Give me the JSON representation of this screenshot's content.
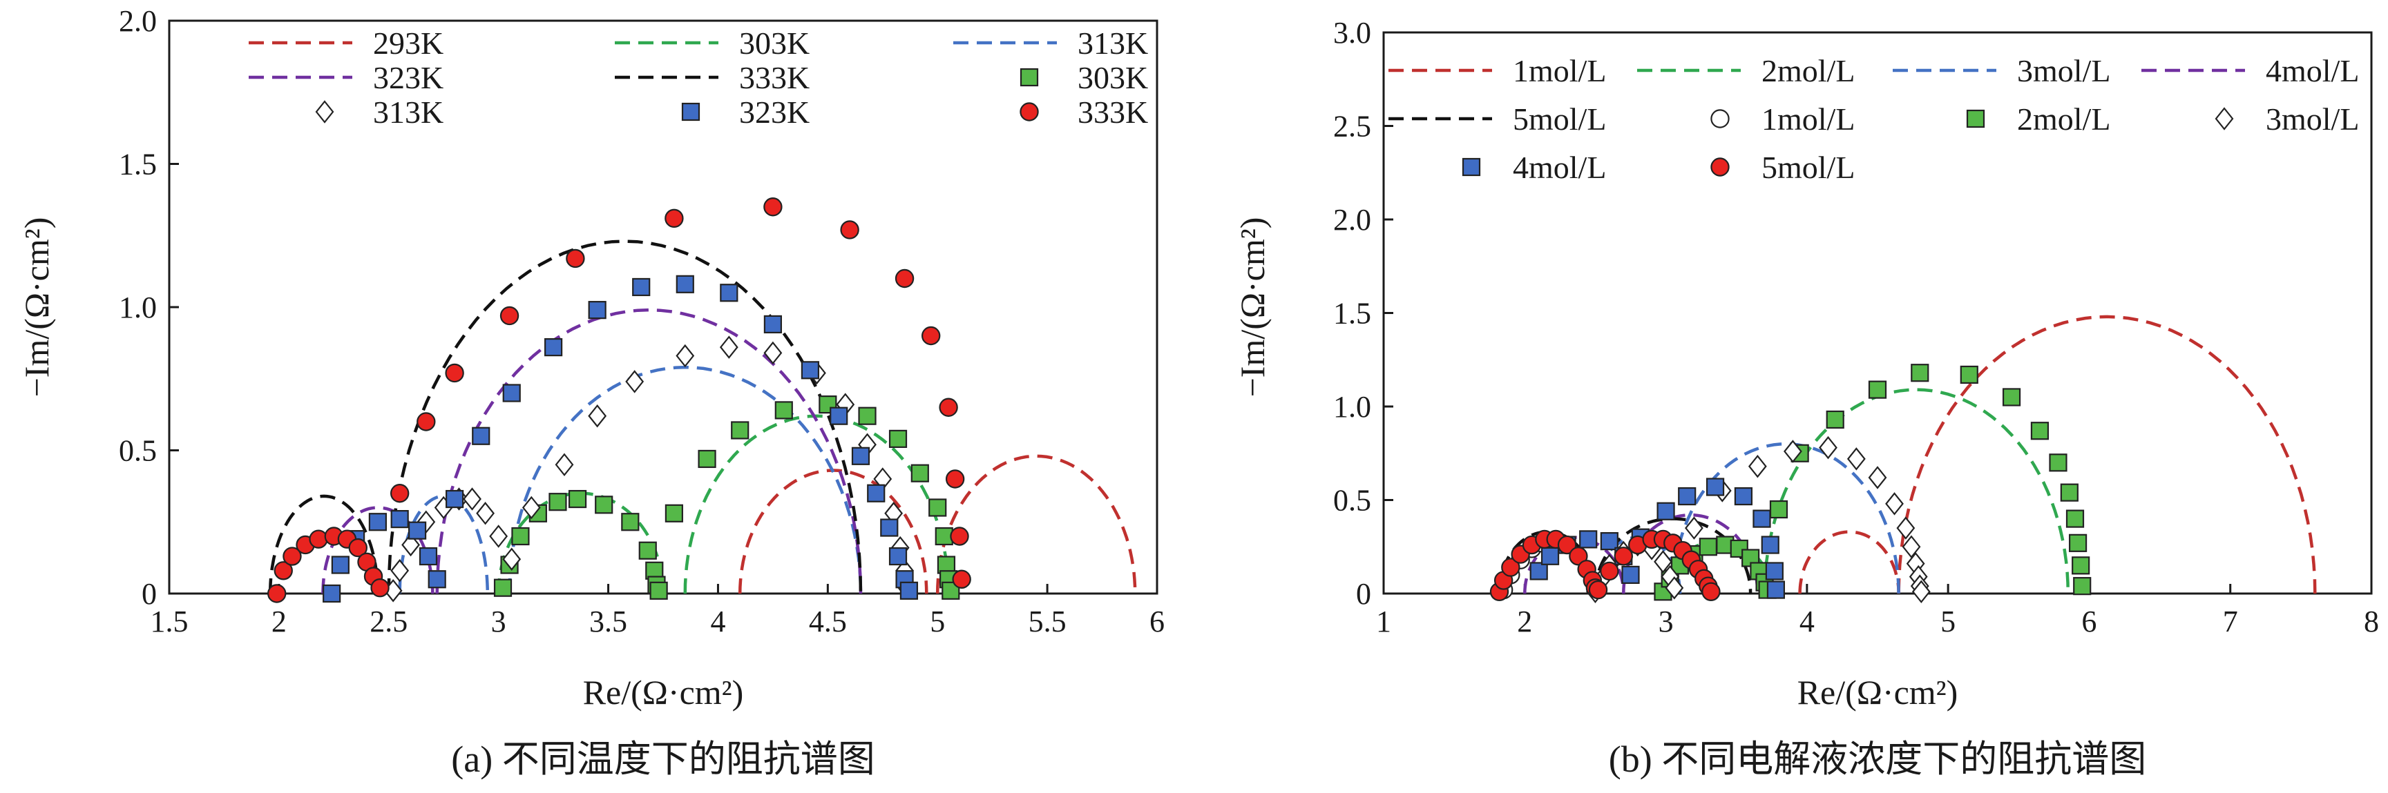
{
  "colors": {
    "red": "#C0302E",
    "green": "#2FA84F",
    "blue": "#4472C4",
    "purple": "#7030A0",
    "black": "#111111",
    "marker_red": "#E8231F",
    "marker_green": "#55B848",
    "marker_blue": "#3F6CC4"
  },
  "chart_data": [
    {
      "type": "scatter",
      "caption": "(a) 不同温度下的阻抗谱图",
      "xlabel": "Re/(Ω·cm²)",
      "ylabel": "−Im/(Ω·cm²)",
      "xlim": [
        1.5,
        6
      ],
      "ylim": [
        0,
        2.0
      ],
      "xticks": [
        1.5,
        2,
        2.5,
        3,
        3.5,
        4,
        4.5,
        5,
        5.5,
        6
      ],
      "xtick_labels": [
        "1.5",
        "2",
        "2.5",
        "3",
        "3.5",
        "4",
        "4.5",
        "5",
        "5.5",
        "6"
      ],
      "yticks": [
        0,
        0.5,
        1.0,
        1.5,
        2.0
      ],
      "ytick_labels": [
        "0",
        "0.5",
        "1.0",
        "1.5",
        "2.0"
      ],
      "grid": false,
      "legend_position": "top",
      "legend": [
        {
          "label": "293K",
          "kind": "line",
          "color": "#C0302E"
        },
        {
          "label": "303K",
          "kind": "line",
          "color": "#2FA84F"
        },
        {
          "label": "313K",
          "kind": "line",
          "color": "#4472C4"
        },
        {
          "label": "323K",
          "kind": "line",
          "color": "#7030A0"
        },
        {
          "label": "333K",
          "kind": "line",
          "color": "#111111"
        },
        {
          "label": "303K",
          "kind": "marker",
          "marker": "square",
          "color": "#55B848"
        },
        {
          "label": "313K",
          "kind": "marker",
          "marker": "diamond",
          "color": "#ffffff"
        },
        {
          "label": "323K",
          "kind": "marker",
          "marker": "square",
          "color": "#3F6CC4"
        },
        {
          "label": "333K",
          "kind": "marker",
          "marker": "circle",
          "color": "#E8231F"
        }
      ],
      "fit_series": [
        {
          "name": "293K",
          "color": "#C0302E",
          "arcs": [
            [
              4.1,
              4.95,
              0.43
            ],
            [
              5.0,
              5.9,
              0.48
            ]
          ]
        },
        {
          "name": "303K",
          "color": "#2FA84F",
          "arcs": [
            [
              3.0,
              3.75,
              0.35
            ],
            [
              3.85,
              5.05,
              0.62
            ]
          ]
        },
        {
          "name": "313K",
          "color": "#4472C4",
          "arcs": [
            [
              2.55,
              2.95,
              0.34
            ],
            [
              3.05,
              4.65,
              0.79
            ]
          ]
        },
        {
          "name": "323K",
          "color": "#7030A0",
          "arcs": [
            [
              2.2,
              2.7,
              0.3
            ],
            [
              2.72,
              4.65,
              0.99
            ]
          ]
        },
        {
          "name": "333K",
          "color": "#111111",
          "arcs": [
            [
              1.96,
              2.45,
              0.34
            ],
            [
              2.5,
              4.65,
              1.23
            ]
          ]
        }
      ],
      "marker_series": [
        {
          "name": "303K",
          "marker": "square",
          "color": "#55B848",
          "x": [
            3.02,
            3.05,
            3.1,
            3.18,
            3.27,
            3.36,
            3.48,
            3.6,
            3.68,
            3.71,
            3.72,
            3.73,
            3.8,
            3.95,
            4.1,
            4.3,
            4.5,
            4.68,
            4.82,
            4.92,
            5.0,
            5.03,
            5.04,
            5.05,
            5.06
          ],
          "y": [
            0.02,
            0.1,
            0.2,
            0.28,
            0.32,
            0.33,
            0.31,
            0.25,
            0.15,
            0.08,
            0.03,
            0.01,
            0.28,
            0.47,
            0.57,
            0.64,
            0.66,
            0.62,
            0.54,
            0.42,
            0.3,
            0.2,
            0.1,
            0.05,
            0.01
          ]
        },
        {
          "name": "313K",
          "marker": "diamond",
          "color": "#ffffff",
          "x": [
            2.52,
            2.55,
            2.6,
            2.67,
            2.75,
            2.82,
            2.88,
            2.94,
            3.0,
            3.06,
            3.15,
            3.3,
            3.45,
            3.62,
            3.85,
            4.05,
            4.25,
            4.45,
            4.58,
            4.68,
            4.75,
            4.8,
            4.83,
            4.85,
            4.86
          ],
          "y": [
            0.01,
            0.08,
            0.17,
            0.25,
            0.3,
            0.33,
            0.33,
            0.28,
            0.2,
            0.12,
            0.3,
            0.45,
            0.62,
            0.74,
            0.83,
            0.86,
            0.84,
            0.77,
            0.66,
            0.52,
            0.4,
            0.28,
            0.16,
            0.08,
            0.02
          ]
        },
        {
          "name": "323K",
          "marker": "square",
          "color": "#3F6CC4",
          "x": [
            2.24,
            2.28,
            2.35,
            2.45,
            2.55,
            2.63,
            2.68,
            2.72,
            2.8,
            2.92,
            3.06,
            3.25,
            3.45,
            3.65,
            3.85,
            4.05,
            4.25,
            4.42,
            4.55,
            4.65,
            4.72,
            4.78,
            4.82,
            4.85,
            4.87
          ],
          "y": [
            0.0,
            0.1,
            0.19,
            0.25,
            0.26,
            0.22,
            0.13,
            0.05,
            0.33,
            0.55,
            0.7,
            0.86,
            0.99,
            1.07,
            1.08,
            1.05,
            0.94,
            0.78,
            0.62,
            0.48,
            0.35,
            0.23,
            0.13,
            0.05,
            0.01
          ]
        },
        {
          "name": "333K",
          "marker": "circle",
          "color": "#E8231F",
          "x": [
            1.99,
            2.02,
            2.06,
            2.12,
            2.18,
            2.25,
            2.31,
            2.36,
            2.4,
            2.43,
            2.46,
            2.55,
            2.67,
            2.8,
            3.05,
            3.35,
            3.8,
            4.25,
            4.6,
            4.85,
            4.97,
            5.05,
            5.08,
            5.1,
            5.11
          ],
          "y": [
            0.0,
            0.08,
            0.13,
            0.17,
            0.19,
            0.2,
            0.19,
            0.16,
            0.11,
            0.06,
            0.02,
            0.35,
            0.6,
            0.77,
            0.97,
            1.17,
            1.31,
            1.35,
            1.27,
            1.1,
            0.9,
            0.65,
            0.4,
            0.2,
            0.05
          ]
        }
      ]
    },
    {
      "type": "scatter",
      "caption": "(b) 不同电解液浓度下的阻抗谱图",
      "xlabel": "Re/(Ω·cm²)",
      "ylabel": "−Im/(Ω·cm²)",
      "xlim": [
        1,
        8
      ],
      "ylim": [
        0,
        3.0
      ],
      "xticks": [
        1,
        2,
        3,
        4,
        5,
        6,
        7,
        8
      ],
      "xtick_labels": [
        "1",
        "2",
        "3",
        "4",
        "5",
        "6",
        "7",
        "8"
      ],
      "yticks": [
        0,
        0.5,
        1.0,
        1.5,
        2.0,
        2.5,
        3.0
      ],
      "ytick_labels": [
        "0",
        "0.5",
        "1.0",
        "1.5",
        "2.0",
        "2.5",
        "3.0"
      ],
      "grid": false,
      "legend_position": "top",
      "legend": [
        {
          "label": "1mol/L",
          "kind": "line",
          "color": "#C0302E"
        },
        {
          "label": "2mol/L",
          "kind": "line",
          "color": "#2FA84F"
        },
        {
          "label": "3mol/L",
          "kind": "line",
          "color": "#4472C4"
        },
        {
          "label": "4mol/L",
          "kind": "line",
          "color": "#7030A0"
        },
        {
          "label": "5mol/L",
          "kind": "line",
          "color": "#111111"
        },
        {
          "label": "1mol/L",
          "kind": "marker",
          "marker": "circle",
          "color": "#ffffff"
        },
        {
          "label": "2mol/L",
          "kind": "marker",
          "marker": "square",
          "color": "#55B848"
        },
        {
          "label": "3mol/L",
          "kind": "marker",
          "marker": "diamond",
          "color": "#ffffff"
        },
        {
          "label": "4mol/L",
          "kind": "marker",
          "marker": "square",
          "color": "#3F6CC4"
        },
        {
          "label": "5mol/L",
          "kind": "marker",
          "marker": "circle",
          "color": "#E8231F"
        }
      ],
      "fit_series": [
        {
          "name": "1mol/L",
          "color": "#C0302E",
          "arcs": [
            [
              3.95,
              4.65,
              0.33
            ],
            [
              4.65,
              7.6,
              1.48
            ]
          ]
        },
        {
          "name": "2mol/L",
          "color": "#2FA84F",
          "arcs": [
            [
              3.0,
              3.75,
              0.28
            ],
            [
              3.7,
              5.85,
              1.09
            ]
          ]
        },
        {
          "name": "3mol/L",
          "color": "#4472C4",
          "arcs": [
            [
              2.5,
              3.1,
              0.3
            ],
            [
              3.05,
              4.65,
              0.8
            ]
          ]
        },
        {
          "name": "4mol/L",
          "color": "#7030A0",
          "arcs": [
            [
              2.0,
              2.7,
              0.3
            ],
            [
              2.7,
              3.65,
              0.42
            ]
          ]
        },
        {
          "name": "5mol/L",
          "color": "#111111",
          "arcs": [
            [
              1.82,
              2.5,
              0.33
            ],
            [
              2.5,
              3.6,
              0.4
            ]
          ]
        }
      ],
      "marker_series": [
        {
          "name": "1mol/L",
          "marker": "circle",
          "color": "#ffffff",
          "x": [
            1.85,
            1.9,
            1.97,
            2.05,
            2.12
          ],
          "y": [
            0.02,
            0.1,
            0.18,
            0.24,
            0.27
          ]
        },
        {
          "name": "2mol/L",
          "marker": "square",
          "color": "#55B848",
          "x": [
            2.98,
            3.03,
            3.1,
            3.2,
            3.3,
            3.42,
            3.52,
            3.6,
            3.66,
            3.7,
            3.72,
            3.8,
            3.95,
            4.2,
            4.5,
            4.8,
            5.15,
            5.45,
            5.65,
            5.78,
            5.86,
            5.9,
            5.92,
            5.94,
            5.95
          ],
          "y": [
            0.01,
            0.08,
            0.15,
            0.21,
            0.25,
            0.26,
            0.24,
            0.19,
            0.12,
            0.06,
            0.02,
            0.45,
            0.75,
            0.93,
            1.09,
            1.18,
            1.17,
            1.05,
            0.87,
            0.7,
            0.54,
            0.4,
            0.27,
            0.15,
            0.04
          ]
        },
        {
          "name": "3mol/L",
          "marker": "diamond",
          "color": "#ffffff",
          "x": [
            2.5,
            2.54,
            2.6,
            2.7,
            2.8,
            2.9,
            2.98,
            3.03,
            3.06,
            3.2,
            3.4,
            3.65,
            3.9,
            4.15,
            4.35,
            4.5,
            4.62,
            4.7,
            4.74,
            4.77,
            4.79,
            4.8,
            4.81
          ],
          "y": [
            0.01,
            0.07,
            0.15,
            0.22,
            0.26,
            0.24,
            0.17,
            0.09,
            0.03,
            0.35,
            0.55,
            0.68,
            0.76,
            0.78,
            0.72,
            0.62,
            0.48,
            0.35,
            0.25,
            0.16,
            0.09,
            0.04,
            0.01
          ]
        },
        {
          "name": "4mol/L",
          "marker": "square",
          "color": "#3F6CC4",
          "x": [
            2.1,
            2.18,
            2.3,
            2.45,
            2.6,
            2.7,
            2.75,
            2.82,
            3.0,
            3.15,
            3.35,
            3.55,
            3.68,
            3.74,
            3.77,
            3.78
          ],
          "y": [
            0.12,
            0.2,
            0.26,
            0.29,
            0.28,
            0.2,
            0.1,
            0.3,
            0.44,
            0.52,
            0.57,
            0.52,
            0.4,
            0.26,
            0.12,
            0.02
          ]
        },
        {
          "name": "5mol/L",
          "marker": "circle",
          "color": "#E8231F",
          "x": [
            1.82,
            1.85,
            1.9,
            1.97,
            2.05,
            2.14,
            2.22,
            2.3,
            2.38,
            2.44,
            2.48,
            2.5,
            2.52,
            2.6,
            2.7,
            2.8,
            2.9,
            2.98,
            3.05,
            3.12,
            3.18,
            3.23,
            3.27,
            3.3,
            3.32
          ],
          "y": [
            0.01,
            0.07,
            0.14,
            0.21,
            0.26,
            0.29,
            0.29,
            0.26,
            0.2,
            0.13,
            0.07,
            0.03,
            0.02,
            0.12,
            0.2,
            0.26,
            0.29,
            0.29,
            0.27,
            0.23,
            0.18,
            0.13,
            0.08,
            0.04,
            0.01
          ]
        }
      ]
    }
  ]
}
